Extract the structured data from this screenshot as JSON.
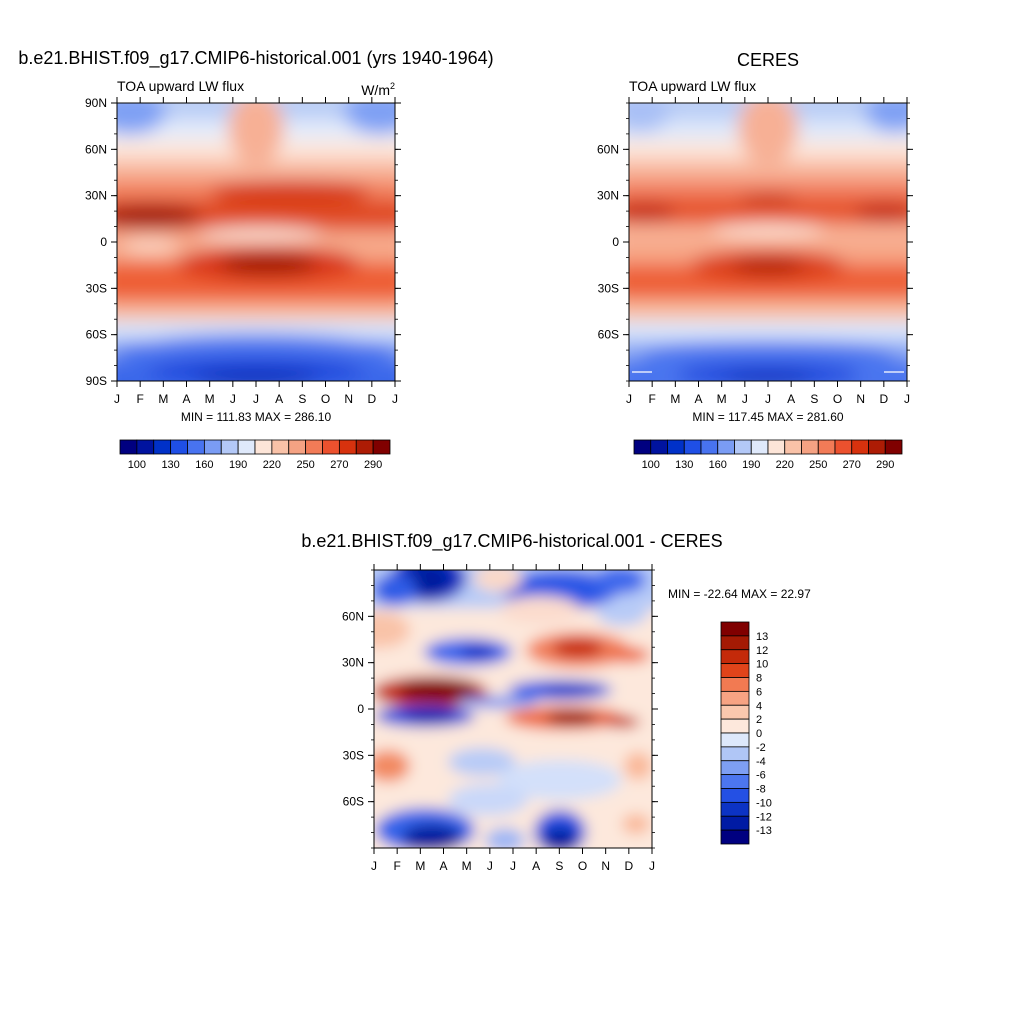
{
  "panels": [
    {
      "id": "model",
      "type": "heatmap",
      "title": "b.e21.BHIST.f09_g17.CMIP6-historical.001 (yrs 1940-1964)",
      "subtitle": "TOA upward LW flux",
      "units_base": "W/m",
      "units_sup": "2",
      "stats": "MIN = 111.83 MAX = 286.10",
      "x_labels": [
        "J",
        "F",
        "M",
        "A",
        "M",
        "J",
        "J",
        "A",
        "S",
        "O",
        "N",
        "D",
        "J"
      ],
      "y_labels": [
        "90N",
        "60N",
        "30N",
        "0",
        "30S",
        "60S",
        "90S"
      ],
      "colorbar": {
        "labels": [
          "100",
          "130",
          "160",
          "190",
          "220",
          "250",
          "270",
          "290"
        ],
        "colors": [
          "#000080",
          "#00139f",
          "#0031c8",
          "#1f4fe6",
          "#4873f0",
          "#7a9cf4",
          "#b3c8f7",
          "#dfe9fb",
          "#fde5d8",
          "#f9c2a8",
          "#f5a283",
          "#f27b57",
          "#ec512e",
          "#d7320e",
          "#ad1c05",
          "#800000"
        ]
      }
    },
    {
      "id": "obs",
      "type": "heatmap",
      "title": "CERES",
      "subtitle": "TOA upward LW flux",
      "stats": "MIN = 117.45 MAX = 281.60",
      "x_labels": [
        "J",
        "F",
        "M",
        "A",
        "M",
        "J",
        "J",
        "A",
        "S",
        "O",
        "N",
        "D",
        "J"
      ],
      "y_labels": [
        "60N",
        "30N",
        "0",
        "30S",
        "60S"
      ],
      "colorbar": {
        "labels": [
          "100",
          "130",
          "160",
          "190",
          "220",
          "250",
          "270",
          "290"
        ],
        "colors": [
          "#000080",
          "#00139f",
          "#0031c8",
          "#1f4fe6",
          "#4873f0",
          "#7a9cf4",
          "#b3c8f7",
          "#dfe9fb",
          "#fde5d8",
          "#f9c2a8",
          "#f5a283",
          "#f27b57",
          "#ec512e",
          "#d7320e",
          "#ad1c05",
          "#800000"
        ]
      }
    },
    {
      "id": "diff",
      "type": "heatmap",
      "title": "b.e21.BHIST.f09_g17.CMIP6-historical.001 - CERES",
      "stats": "MIN = -22.64 MAX =  22.97",
      "x_labels": [
        "J",
        "F",
        "M",
        "A",
        "M",
        "J",
        "J",
        "A",
        "S",
        "O",
        "N",
        "D",
        "J"
      ],
      "y_labels": [
        "60N",
        "30N",
        "0",
        "30S",
        "60S"
      ],
      "colorbar": {
        "labels": [
          "13",
          "12",
          "10",
          "8",
          "6",
          "4",
          "2",
          "0",
          "-2",
          "-4",
          "-6",
          "-8",
          "-10",
          "-12",
          "-13"
        ],
        "colors": [
          "#800000",
          "#a41a04",
          "#c42a0a",
          "#e0441a",
          "#f27a52",
          "#f7a383",
          "#fac8ae",
          "#fde8dc",
          "#dde8fb",
          "#b0c6f6",
          "#7e9ff3",
          "#4c76ef",
          "#2450e4",
          "#0c33c4",
          "#001ba4",
          "#000080"
        ]
      }
    }
  ]
}
